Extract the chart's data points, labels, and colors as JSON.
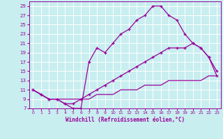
{
  "xlabel": "Windchill (Refroidissement éolien,°C)",
  "bg_color": "#c8eef0",
  "grid_color": "#ffffff",
  "line_color": "#990099",
  "xlim": [
    -0.5,
    23.5
  ],
  "ylim": [
    7,
    30
  ],
  "xticks": [
    0,
    1,
    2,
    3,
    4,
    5,
    6,
    7,
    8,
    9,
    10,
    11,
    12,
    13,
    14,
    15,
    16,
    17,
    18,
    19,
    20,
    21,
    22,
    23
  ],
  "yticks": [
    7,
    9,
    11,
    13,
    15,
    17,
    19,
    21,
    23,
    25,
    27,
    29
  ],
  "line1_x": [
    0,
    1,
    2,
    3,
    4,
    5,
    6,
    7,
    8,
    9,
    10,
    11,
    12,
    13,
    14,
    15,
    16,
    17,
    18,
    19,
    20,
    21,
    22,
    23
  ],
  "line1_y": [
    11,
    10,
    9,
    9,
    8,
    7,
    7,
    17,
    20,
    19,
    21,
    23,
    24,
    26,
    27,
    29,
    29,
    27,
    26,
    23,
    21,
    20,
    18,
    14
  ],
  "line2_x": [
    0,
    1,
    2,
    3,
    4,
    5,
    6,
    7,
    8,
    9,
    10,
    11,
    12,
    13,
    14,
    15,
    16,
    17,
    18,
    19,
    20,
    21,
    22,
    23
  ],
  "line2_y": [
    11,
    10,
    9,
    9,
    8,
    8,
    9,
    10,
    11,
    12,
    13,
    14,
    15,
    16,
    17,
    18,
    19,
    20,
    20,
    20,
    21,
    20,
    18,
    15
  ],
  "line3_x": [
    0,
    1,
    2,
    3,
    4,
    5,
    6,
    7,
    8,
    9,
    10,
    11,
    12,
    13,
    14,
    15,
    16,
    17,
    18,
    19,
    20,
    21,
    22,
    23
  ],
  "line3_y": [
    11,
    10,
    9,
    9,
    9,
    9,
    9,
    9,
    10,
    10,
    10,
    11,
    11,
    11,
    12,
    12,
    12,
    13,
    13,
    13,
    13,
    13,
    14,
    14
  ]
}
